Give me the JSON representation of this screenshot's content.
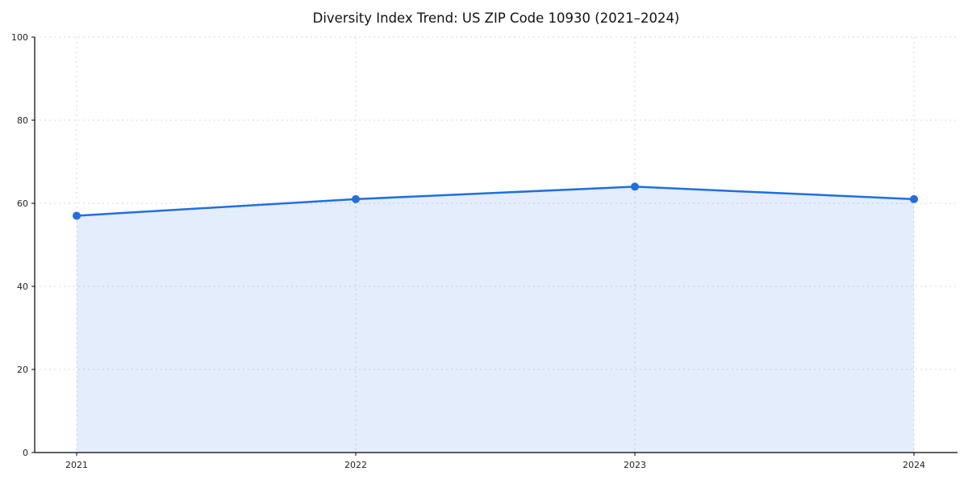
{
  "chart_data": {
    "type": "area",
    "title": "Diversity Index Trend: US ZIP Code 10930 (2021–2024)",
    "categories": [
      "2021",
      "2022",
      "2023",
      "2024"
    ],
    "values": [
      57,
      61,
      64,
      61
    ],
    "xlabel": "",
    "ylabel": "",
    "ylim": [
      0,
      100
    ],
    "yticks": [
      0,
      20,
      40,
      60,
      80,
      100
    ],
    "grid": "dashed",
    "legend": "none",
    "colors": {
      "line": "#1f6fe0",
      "point": "#1f6fe0",
      "fill": "#1f6fe0",
      "fill_opacity": "0.12",
      "grid": "#d9d9d9",
      "axis": "#000000",
      "text": "#1a1a1a",
      "background": "#ffffff"
    }
  }
}
